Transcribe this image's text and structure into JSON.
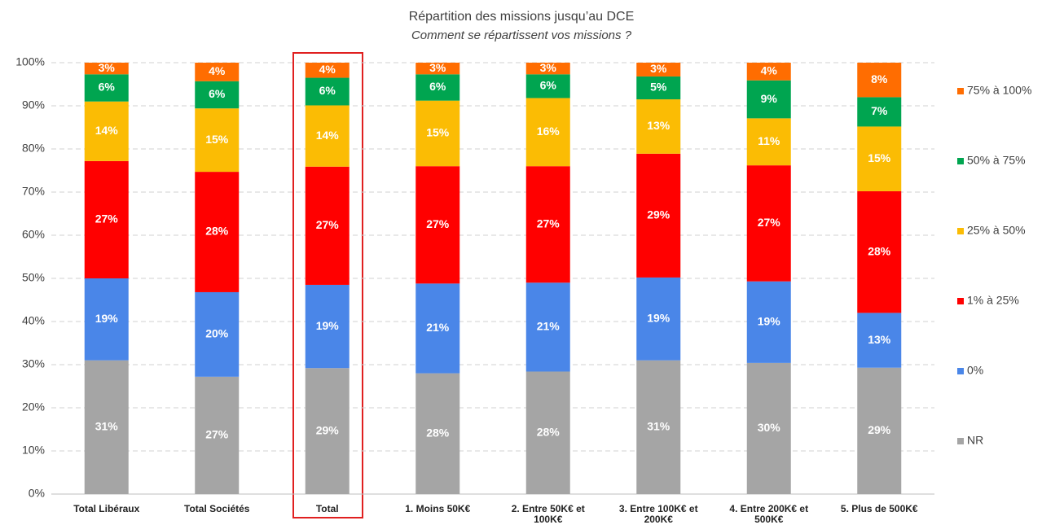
{
  "chart_data": {
    "type": "stacked_bar",
    "title": "Répartition des missions jusqu’au DCE",
    "subtitle": "Comment se répartissent vos missions ?",
    "categories": [
      "Total Libéraux",
      "Total Sociétés",
      "Total",
      "1. Moins 50K€",
      "2. Entre 50K€ et 100K€",
      "3. Entre 100K€ et 200K€",
      "4. Entre 200K€ et 500K€",
      "5. Plus de 500K€"
    ],
    "series": [
      {
        "name": "NR",
        "color": "#a5a5a5",
        "values": [
          31,
          27.2,
          29.2,
          28,
          28.4,
          31,
          30.4,
          29.3
        ],
        "value_labels": [
          "31%",
          "27%",
          "29%",
          "28%",
          "28%",
          "31%",
          "30%",
          "29%"
        ]
      },
      {
        "name": "0%",
        "color": "#4a86e8",
        "values": [
          19,
          19.6,
          19.3,
          20.8,
          20.6,
          19.2,
          18.9,
          12.7
        ],
        "value_labels": [
          "19%",
          "20%",
          "19%",
          "21%",
          "21%",
          "19%",
          "19%",
          "13%"
        ]
      },
      {
        "name": "1% à 25%",
        "color": "#ff0000",
        "values": [
          27.2,
          27.9,
          27.4,
          27.2,
          27,
          28.7,
          26.9,
          28.2
        ],
        "value_labels": [
          "27%",
          "28%",
          "27%",
          "27%",
          "27%",
          "29%",
          "27%",
          "28%"
        ]
      },
      {
        "name": "25% à 50%",
        "color": "#fbbc04",
        "values": [
          13.8,
          14.7,
          14.2,
          15.2,
          15.8,
          12.6,
          10.9,
          15
        ],
        "value_labels": [
          "14%",
          "15%",
          "14%",
          "15%",
          "16%",
          "13%",
          "11%",
          "15%"
        ]
      },
      {
        "name": "50% à 75%",
        "color": "#00a550",
        "values": [
          6.3,
          6.3,
          6.4,
          6.1,
          5.5,
          5.3,
          8.8,
          6.8
        ],
        "value_labels": [
          "6%",
          "6%",
          "6%",
          "6%",
          "6%",
          "5%",
          "9%",
          "7%"
        ]
      },
      {
        "name": "75% à 100%",
        "color": "#ff6d01",
        "values": [
          2.7,
          4.3,
          3.5,
          2.7,
          2.7,
          3.2,
          4.1,
          8
        ],
        "value_labels": [
          "3%",
          "4%",
          "4%",
          "3%",
          "3%",
          "3%",
          "4%",
          "8%"
        ]
      }
    ],
    "ylim": [
      0,
      100
    ],
    "yticks": [
      {
        "value": 0,
        "label": "0%"
      },
      {
        "value": 10,
        "label": "10%"
      },
      {
        "value": 20,
        "label": "20%"
      },
      {
        "value": 30,
        "label": "30%"
      },
      {
        "value": 40,
        "label": "40%"
      },
      {
        "value": 50,
        "label": "50%"
      },
      {
        "value": 60,
        "label": "60%"
      },
      {
        "value": 70,
        "label": "70%"
      },
      {
        "value": 80,
        "label": "80%"
      },
      {
        "value": 90,
        "label": "90%"
      },
      {
        "value": 100,
        "label": "100%"
      }
    ],
    "grid": true,
    "legend": "right"
  }
}
